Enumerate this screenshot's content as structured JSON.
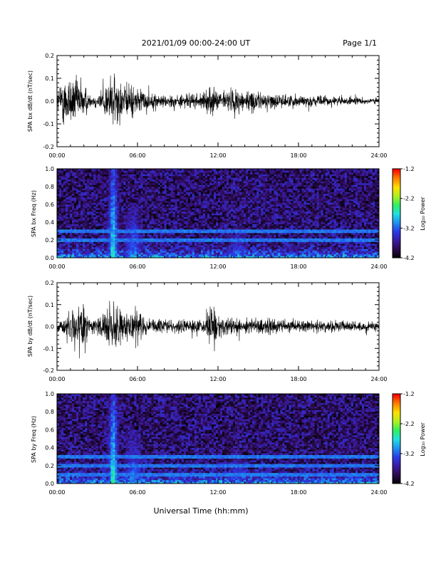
{
  "header": {
    "title": "2021/01/09  00:00-24:00 UT",
    "page": "Page 1/1"
  },
  "colors": {
    "trace": "#000000",
    "colormap": [
      "#000000",
      "#2a0a4a",
      "#3a1aa0",
      "#2a3ae8",
      "#1e90f0",
      "#20e0e0",
      "#30f060",
      "#b0f020",
      "#ffe000",
      "#ff8000",
      "#ff0000"
    ]
  },
  "chart_data": [
    {
      "type": "line",
      "ylabel": "SPA bx dB/dt (nT/sec)",
      "ylim": [
        -0.2,
        0.2
      ],
      "yticks": [
        "0.2",
        "0.1",
        "0.0",
        "-0.1",
        "-0.2"
      ],
      "xlim": [
        0,
        24
      ],
      "xticks": [
        "00:00",
        "06:00",
        "12:00",
        "18:00",
        "24:00"
      ],
      "series": [
        {
          "x_hours": [
            0,
            0.5,
            1,
            1.5,
            2,
            2.5,
            3,
            3.5,
            4,
            4.5,
            5,
            5.5,
            6,
            7,
            8,
            9,
            10,
            11,
            11.5,
            12,
            13,
            14,
            15,
            16,
            17,
            18,
            19,
            20,
            21,
            22,
            23,
            24
          ],
          "amplitude": [
            0.08,
            0.2,
            0.2,
            0.18,
            0.15,
            0.04,
            0.06,
            0.12,
            0.2,
            0.2,
            0.12,
            0.14,
            0.1,
            0.06,
            0.05,
            0.05,
            0.06,
            0.06,
            0.12,
            0.07,
            0.1,
            0.09,
            0.07,
            0.06,
            0.05,
            0.05,
            0.04,
            0.04,
            0.035,
            0.03,
            0.025,
            0.025
          ]
        }
      ]
    },
    {
      "type": "heatmap",
      "ylabel": "SPA bx Freq (Hz)",
      "ylim": [
        0.0,
        1.0
      ],
      "yticks": [
        "1.0",
        "0.8",
        "0.6",
        "0.4",
        "0.2",
        "0.0"
      ],
      "xlim": [
        0,
        24
      ],
      "xticks": [
        "00:00",
        "06:00",
        "12:00",
        "18:00",
        "24:00"
      ],
      "colorbar": {
        "label": "Log₁₀ Power",
        "ticks": [
          "-1.2",
          "-2.2",
          "-3.2",
          "-4.2"
        ],
        "range": [
          -4.2,
          -1.2
        ]
      },
      "background_log_power": -3.8,
      "horizontal_lines_hz": [
        0.3,
        0.2
      ],
      "hotspots": [
        {
          "t_hours": 4.2,
          "f_max_hz": 1.0,
          "log_power": -2.6
        },
        {
          "t_hours": 5.7,
          "f_max_hz": 0.6,
          "log_power": -3.0
        },
        {
          "t_hours": 13.5,
          "f_max_hz": 0.35,
          "log_power": -3.1
        },
        {
          "t_hours": 18.5,
          "f_max_hz": 0.1,
          "log_power": -3.2
        }
      ]
    },
    {
      "type": "line",
      "ylabel": "SPA by dB/dt (nT/sec)",
      "ylim": [
        -0.2,
        0.2
      ],
      "yticks": [
        "0.2",
        "0.1",
        "0.0",
        "-0.1",
        "-0.2"
      ],
      "xlim": [
        0,
        24
      ],
      "xticks": [
        "00:00",
        "06:00",
        "12:00",
        "18:00",
        "24:00"
      ],
      "series": [
        {
          "x_hours": [
            0,
            0.5,
            1,
            1.5,
            2,
            2.5,
            3,
            3.5,
            4,
            4.5,
            5,
            5.5,
            6,
            7,
            8,
            9,
            10,
            11,
            11.5,
            12,
            13,
            14,
            15,
            16,
            17,
            18,
            19,
            20,
            21,
            22,
            23,
            24
          ],
          "amplitude": [
            0.04,
            0.08,
            0.15,
            0.15,
            0.2,
            0.06,
            0.07,
            0.1,
            0.2,
            0.2,
            0.11,
            0.13,
            0.12,
            0.05,
            0.05,
            0.05,
            0.07,
            0.05,
            0.2,
            0.08,
            0.08,
            0.07,
            0.06,
            0.07,
            0.05,
            0.05,
            0.05,
            0.05,
            0.05,
            0.04,
            0.035,
            0.03
          ]
        }
      ]
    },
    {
      "type": "heatmap",
      "ylabel": "SPA by Freq (Hz)",
      "ylim": [
        0.0,
        1.0
      ],
      "yticks": [
        "1.0",
        "0.8",
        "0.6",
        "0.4",
        "0.2",
        "0.0"
      ],
      "xlim": [
        0,
        24
      ],
      "xticks": [
        "00:00",
        "06:00",
        "12:00",
        "18:00",
        "24:00"
      ],
      "xlabel": "Universal Time (hh:mm)",
      "colorbar": {
        "label": "Log₁₀ Power",
        "ticks": [
          "-1.2",
          "-2.2",
          "-3.2",
          "-4.2"
        ],
        "range": [
          -4.2,
          -1.2
        ]
      },
      "background_log_power": -3.8,
      "horizontal_lines_hz": [
        0.3,
        0.2,
        0.1
      ],
      "hotspots": [
        {
          "t_hours": 4.2,
          "f_max_hz": 1.0,
          "log_power": -2.6
        },
        {
          "t_hours": 5.7,
          "f_max_hz": 0.6,
          "log_power": -3.0
        },
        {
          "t_hours": 13.5,
          "f_max_hz": 0.35,
          "log_power": -3.1
        },
        {
          "t_hours": 18.5,
          "f_max_hz": 0.1,
          "log_power": -3.2
        }
      ]
    }
  ]
}
